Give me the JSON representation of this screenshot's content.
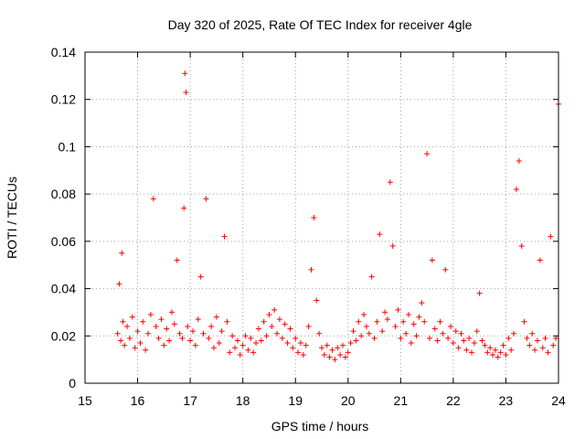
{
  "chart_data": {
    "type": "scatter",
    "title": "Day 320 of 2025, Rate Of TEC Index for receiver 4gle",
    "xlabel": "GPS time / hours",
    "ylabel": "ROTI / TECUs",
    "xlim": [
      15,
      24
    ],
    "ylim": [
      0,
      0.14
    ],
    "x_ticks": [
      15,
      16,
      17,
      18,
      19,
      20,
      21,
      22,
      23,
      24
    ],
    "x_tick_labels": [
      "15",
      "16",
      "17",
      "18",
      "19",
      "20",
      "21",
      "22",
      "23",
      "24"
    ],
    "y_ticks": [
      0,
      0.02,
      0.04,
      0.06,
      0.08,
      0.1,
      0.12,
      0.14
    ],
    "y_tick_labels": [
      "0",
      "0.02",
      "0.04",
      "0.06",
      "0.08",
      "0.1",
      "0.12",
      "0.14"
    ],
    "grid": true,
    "marker": "+",
    "color": "#ff0000",
    "series": [
      {
        "x": [
          15.62,
          15.65,
          15.68,
          15.7,
          15.72,
          15.75,
          15.8,
          15.85,
          15.9,
          15.95,
          16.0,
          16.05,
          16.1,
          16.15,
          16.2,
          16.25,
          16.3,
          16.35,
          16.4,
          16.45,
          16.5,
          16.55,
          16.6,
          16.65,
          16.7,
          16.75,
          16.8,
          16.85,
          16.88,
          16.9,
          16.92,
          16.95,
          17.0,
          17.05,
          17.1,
          17.15,
          17.2,
          17.25,
          17.3,
          17.35,
          17.4,
          17.45,
          17.5,
          17.55,
          17.6,
          17.65,
          17.7,
          17.75,
          17.8,
          17.85,
          17.9,
          17.95,
          18.0,
          18.05,
          18.1,
          18.15,
          18.2,
          18.25,
          18.3,
          18.35,
          18.4,
          18.45,
          18.5,
          18.55,
          18.6,
          18.65,
          18.7,
          18.75,
          18.8,
          18.85,
          18.9,
          18.95,
          19.0,
          19.05,
          19.1,
          19.15,
          19.2,
          19.25,
          19.3,
          19.35,
          19.4,
          19.45,
          19.5,
          19.55,
          19.6,
          19.65,
          19.7,
          19.75,
          19.8,
          19.85,
          19.9,
          19.95,
          20.0,
          20.05,
          20.1,
          20.15,
          20.2,
          20.25,
          20.3,
          20.35,
          20.4,
          20.45,
          20.5,
          20.55,
          20.6,
          20.65,
          20.7,
          20.75,
          20.8,
          20.85,
          20.9,
          20.95,
          21.0,
          21.05,
          21.1,
          21.15,
          21.2,
          21.25,
          21.3,
          21.35,
          21.4,
          21.45,
          21.5,
          21.55,
          21.6,
          21.65,
          21.7,
          21.75,
          21.8,
          21.85,
          21.9,
          21.95,
          22.0,
          22.05,
          22.1,
          22.15,
          22.2,
          22.25,
          22.3,
          22.35,
          22.4,
          22.45,
          22.5,
          22.55,
          22.6,
          22.65,
          22.7,
          22.75,
          22.8,
          22.85,
          22.9,
          22.95,
          23.0,
          23.05,
          23.1,
          23.15,
          23.2,
          23.25,
          23.3,
          23.35,
          23.4,
          23.45,
          23.5,
          23.55,
          23.6,
          23.65,
          23.7,
          23.75,
          23.8,
          23.85,
          23.9,
          23.95,
          24.0
        ],
        "y": [
          0.021,
          0.042,
          0.018,
          0.055,
          0.026,
          0.016,
          0.024,
          0.019,
          0.028,
          0.015,
          0.022,
          0.017,
          0.026,
          0.014,
          0.021,
          0.029,
          0.078,
          0.024,
          0.019,
          0.027,
          0.016,
          0.023,
          0.018,
          0.03,
          0.025,
          0.052,
          0.021,
          0.019,
          0.074,
          0.131,
          0.123,
          0.024,
          0.018,
          0.022,
          0.016,
          0.027,
          0.045,
          0.021,
          0.078,
          0.019,
          0.024,
          0.015,
          0.028,
          0.017,
          0.022,
          0.062,
          0.026,
          0.013,
          0.02,
          0.015,
          0.018,
          0.012,
          0.016,
          0.02,
          0.014,
          0.019,
          0.013,
          0.017,
          0.023,
          0.018,
          0.026,
          0.02,
          0.029,
          0.024,
          0.031,
          0.021,
          0.027,
          0.019,
          0.025,
          0.017,
          0.023,
          0.015,
          0.019,
          0.013,
          0.017,
          0.012,
          0.016,
          0.024,
          0.048,
          0.07,
          0.035,
          0.021,
          0.015,
          0.012,
          0.016,
          0.011,
          0.014,
          0.01,
          0.015,
          0.012,
          0.016,
          0.011,
          0.013,
          0.017,
          0.022,
          0.018,
          0.026,
          0.02,
          0.029,
          0.024,
          0.021,
          0.045,
          0.019,
          0.026,
          0.063,
          0.022,
          0.03,
          0.027,
          0.085,
          0.058,
          0.024,
          0.031,
          0.019,
          0.026,
          0.021,
          0.029,
          0.017,
          0.025,
          0.02,
          0.028,
          0.034,
          0.026,
          0.097,
          0.019,
          0.052,
          0.023,
          0.018,
          0.026,
          0.021,
          0.048,
          0.019,
          0.024,
          0.017,
          0.022,
          0.015,
          0.021,
          0.018,
          0.014,
          0.019,
          0.013,
          0.017,
          0.022,
          0.038,
          0.018,
          0.016,
          0.013,
          0.015,
          0.012,
          0.014,
          0.011,
          0.013,
          0.016,
          0.012,
          0.019,
          0.014,
          0.021,
          0.082,
          0.094,
          0.058,
          0.026,
          0.019,
          0.016,
          0.021,
          0.014,
          0.018,
          0.052,
          0.015,
          0.019,
          0.013,
          0.062,
          0.016,
          0.019,
          0.118
        ]
      }
    ]
  }
}
